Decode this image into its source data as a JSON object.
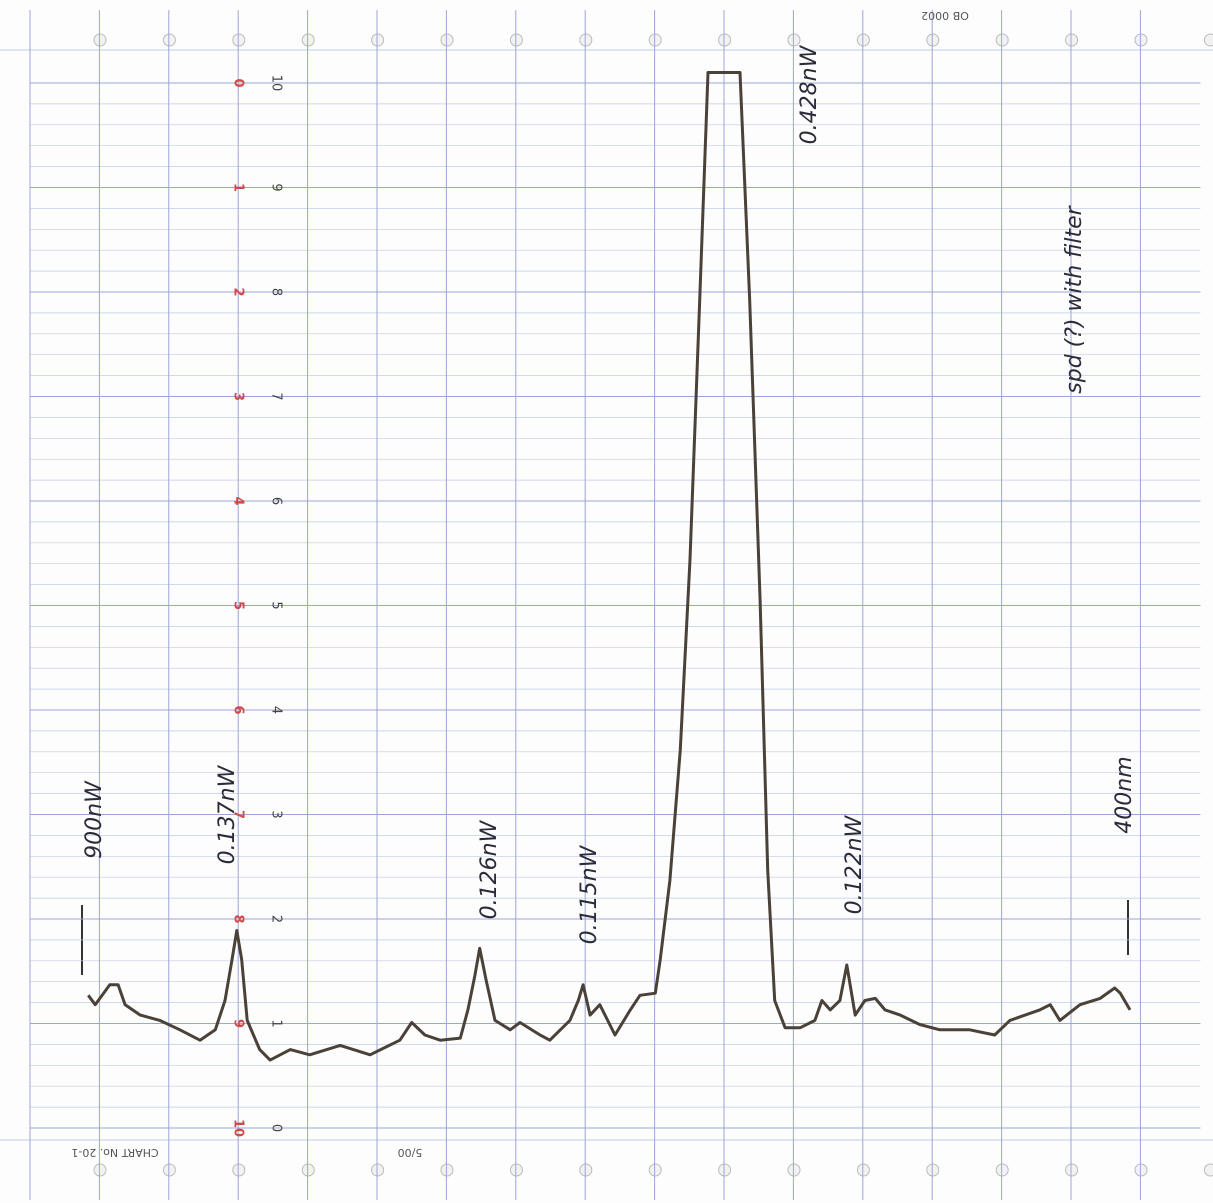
{
  "chart_data": {
    "type": "line",
    "xlim": [
      0,
      16
    ],
    "ylim": [
      0,
      10
    ],
    "yticks": [
      0,
      1,
      2,
      3,
      4,
      5,
      6,
      7,
      8,
      9,
      10
    ],
    "y2lim": [
      10,
      0
    ],
    "y2ticks": [
      0,
      1,
      2,
      3,
      4,
      5,
      6,
      7,
      8,
      9,
      10
    ],
    "grid": true,
    "series": [
      {
        "color": "#4a4238",
        "x": [
          0.84,
          0.94,
          1.15,
          1.27,
          1.37,
          1.59,
          1.87,
          2.16,
          2.45,
          2.67,
          2.81,
          2.91,
          2.98,
          3.05,
          3.13,
          3.31,
          3.46,
          3.75,
          4.03,
          4.47,
          4.9,
          5.33,
          5.5,
          5.69,
          5.91,
          6.2,
          6.31,
          6.41,
          6.48,
          6.57,
          6.7,
          6.92,
          7.06,
          7.35,
          7.49,
          7.78,
          7.9,
          7.97,
          8.07,
          8.21,
          8.43,
          8.65,
          8.79,
          9.01,
          9.08,
          9.22,
          9.37,
          9.51,
          9.65,
          9.77,
          10.23,
          10.37,
          10.52,
          10.63,
          10.73,
          10.88,
          11.1,
          11.31,
          11.41,
          11.53,
          11.67,
          11.77,
          11.89,
          12.03,
          12.18,
          12.32,
          12.54,
          12.82,
          13.11,
          13.54,
          13.9,
          14.12,
          14.55,
          14.7,
          14.84,
          15.13,
          15.42,
          15.63,
          15.71,
          15.85
        ],
        "values": [
          1.27,
          1.18,
          1.37,
          1.37,
          1.18,
          1.08,
          1.03,
          0.94,
          0.84,
          0.94,
          1.22,
          1.61,
          1.89,
          1.61,
          1.03,
          0.75,
          0.65,
          0.75,
          0.7,
          0.79,
          0.7,
          0.84,
          1.01,
          0.89,
          0.84,
          0.86,
          1.13,
          1.46,
          1.72,
          1.42,
          1.03,
          0.94,
          1.01,
          0.89,
          0.84,
          1.03,
          1.22,
          1.37,
          1.08,
          1.18,
          0.89,
          1.13,
          1.27,
          1.29,
          1.61,
          2.37,
          3.62,
          5.44,
          7.92,
          10.1,
          10.1,
          7.92,
          5.05,
          2.47,
          1.22,
          0.96,
          0.96,
          1.03,
          1.22,
          1.13,
          1.22,
          1.56,
          1.08,
          1.22,
          1.24,
          1.13,
          1.08,
          0.99,
          0.94,
          0.94,
          0.89,
          1.03,
          1.13,
          1.18,
          1.03,
          1.18,
          1.24,
          1.34,
          1.29,
          1.13
        ]
      }
    ],
    "annotations": [
      "900nW",
      "0.137nW",
      "0.126nW",
      "0.115nW",
      "0.428nW",
      "0.122nW",
      "400nm",
      "spd (?) with filter"
    ],
    "printed": [
      "OB 0002",
      "CHART No. 20-1",
      "5/00"
    ]
  }
}
